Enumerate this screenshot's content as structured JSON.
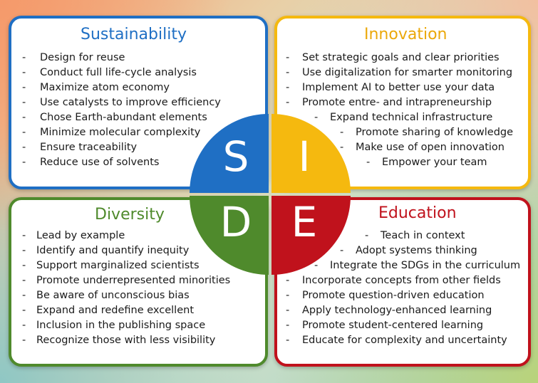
{
  "sustainability": {
    "title": "Sustainability",
    "letter": "S",
    "color": "#1f6fc4",
    "items": [
      "Design for reuse",
      "Conduct full life-cycle analysis",
      "Maximize atom economy",
      "Use catalysts to improve efficiency",
      "Chose Earth-abundant elements",
      "Minimize molecular complexity",
      "Ensure traceability",
      "Reduce use of solvents"
    ]
  },
  "innovation": {
    "title": "Innovation",
    "letter": "I",
    "color": "#f5b90f",
    "items": [
      "Set strategic goals and clear priorities",
      "Use digitalization for smarter monitoring",
      "Implement AI to better use your data",
      "Promote entre- and intrapreneurship",
      "Expand technical infrastructure",
      "Promote sharing of knowledge",
      "Make use of open innovation",
      "Empower your team"
    ]
  },
  "diversity": {
    "title": "Diversity",
    "letter": "D",
    "color": "#4f8a2c",
    "items": [
      "Lead by example",
      "Identify and quantify inequity",
      "Support marginalized scientists",
      "Promote underrepresented minorities",
      "Be aware of unconscious bias",
      "Expand and redefine excellent",
      "Inclusion in the publishing space",
      "Recognize those with less visibility"
    ]
  },
  "education": {
    "title": "Education",
    "letter": "E",
    "color": "#c0121c",
    "items": [
      "Teach in context",
      "Adopt systems thinking",
      "Integrate the SDGs in the curriculum",
      "Incorporate concepts from other fields",
      "Promote question-driven education",
      "Apply technology-enhanced learning",
      "Promote student-centered learning",
      "Educate for complexity and uncertainty"
    ]
  },
  "bullet": "-"
}
